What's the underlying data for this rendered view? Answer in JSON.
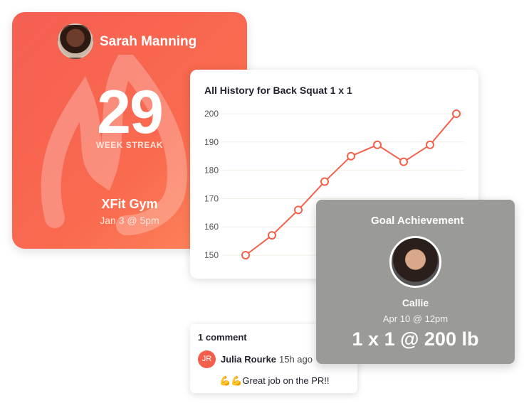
{
  "streak_card": {
    "name": "Sarah Manning",
    "count": "29",
    "label": "WEEK STREAK",
    "gym": "XFit Gym",
    "date": "Jan 3 @ 5pm",
    "color": "#f45f52"
  },
  "chart_card": {
    "title": "All History for Back Squat 1 x 1"
  },
  "chart_data": {
    "type": "line",
    "title": "All History for Back Squat 1 x 1",
    "xlabel": "",
    "ylabel": "",
    "ylim": [
      150,
      200
    ],
    "yticks": [
      "150",
      "160",
      "170",
      "180",
      "190",
      "200"
    ],
    "grid": true,
    "color": "#f4604a",
    "series": [
      {
        "values": [
          150,
          157,
          166,
          176,
          185,
          189,
          183,
          189,
          200
        ]
      }
    ]
  },
  "goal_card": {
    "title": "Goal Achievement",
    "user": "Callie",
    "date": "Apr 10 @ 12pm",
    "result": "1 x 1 @ 200 lb"
  },
  "comment_card": {
    "count": "1 comment",
    "initials": "JR",
    "author": "Julia Rourke",
    "time": "15h ago",
    "text": "💪💪Great job on the PR!!"
  }
}
